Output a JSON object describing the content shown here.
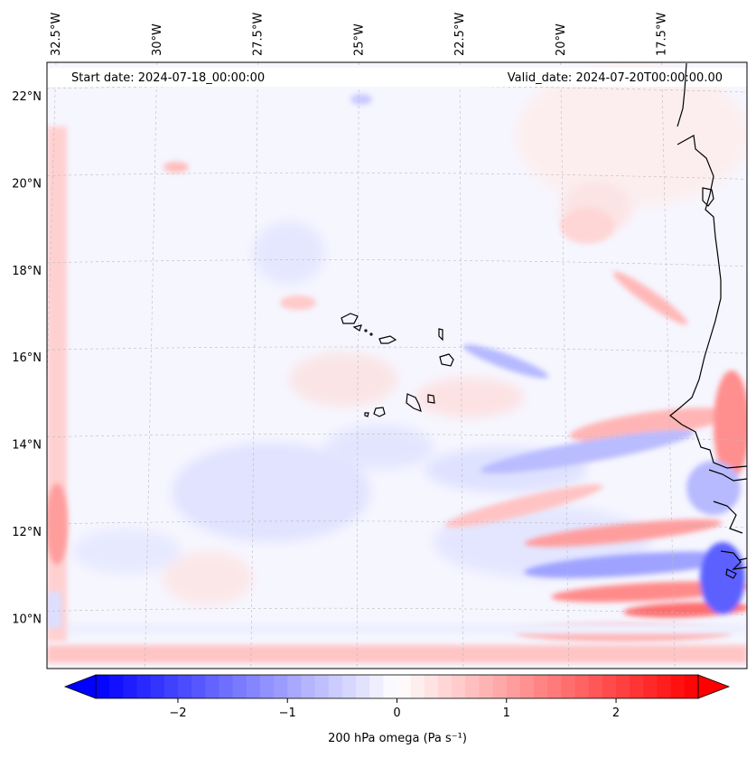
{
  "map": {
    "header_left": "Start date: 2024-07-18_00:00:00",
    "header_right": "Valid_date: 2024-07-20T00:00:00.00",
    "lon_labels": [
      {
        "text": "32.5°W",
        "lon": -32.5
      },
      {
        "text": "30°W",
        "lon": -30.0
      },
      {
        "text": "27.5°W",
        "lon": -27.5
      },
      {
        "text": "25°W",
        "lon": -25.0
      },
      {
        "text": "22.5°W",
        "lon": -22.5
      },
      {
        "text": "20°W",
        "lon": -20.0
      },
      {
        "text": "17.5°W",
        "lon": -17.5
      }
    ],
    "lat_labels": [
      {
        "text": "22°N",
        "lat": 22
      },
      {
        "text": "20°N",
        "lat": 20
      },
      {
        "text": "18°N",
        "lat": 18
      },
      {
        "text": "16°N",
        "lat": 16
      },
      {
        "text": "14°N",
        "lat": 14
      },
      {
        "text": "12°N",
        "lat": 12
      },
      {
        "text": "10°N",
        "lat": 10
      }
    ],
    "field": "200 hPa omega",
    "colorbar": {
      "label": "200 hPa omega (Pa s⁻¹)",
      "ticks": [
        "−2",
        "−1",
        "0",
        "1",
        "2"
      ],
      "tick_values": [
        -2,
        -1,
        0,
        1,
        2
      ],
      "range": [
        -2.75,
        2.75
      ],
      "colormap": "bwr",
      "extend": "both",
      "color_min": "#0000ff",
      "color_mid": "#ffffff",
      "color_max": "#ff0000"
    },
    "coastline_color": "#000000",
    "gridline_color": "#bbbbbb"
  }
}
